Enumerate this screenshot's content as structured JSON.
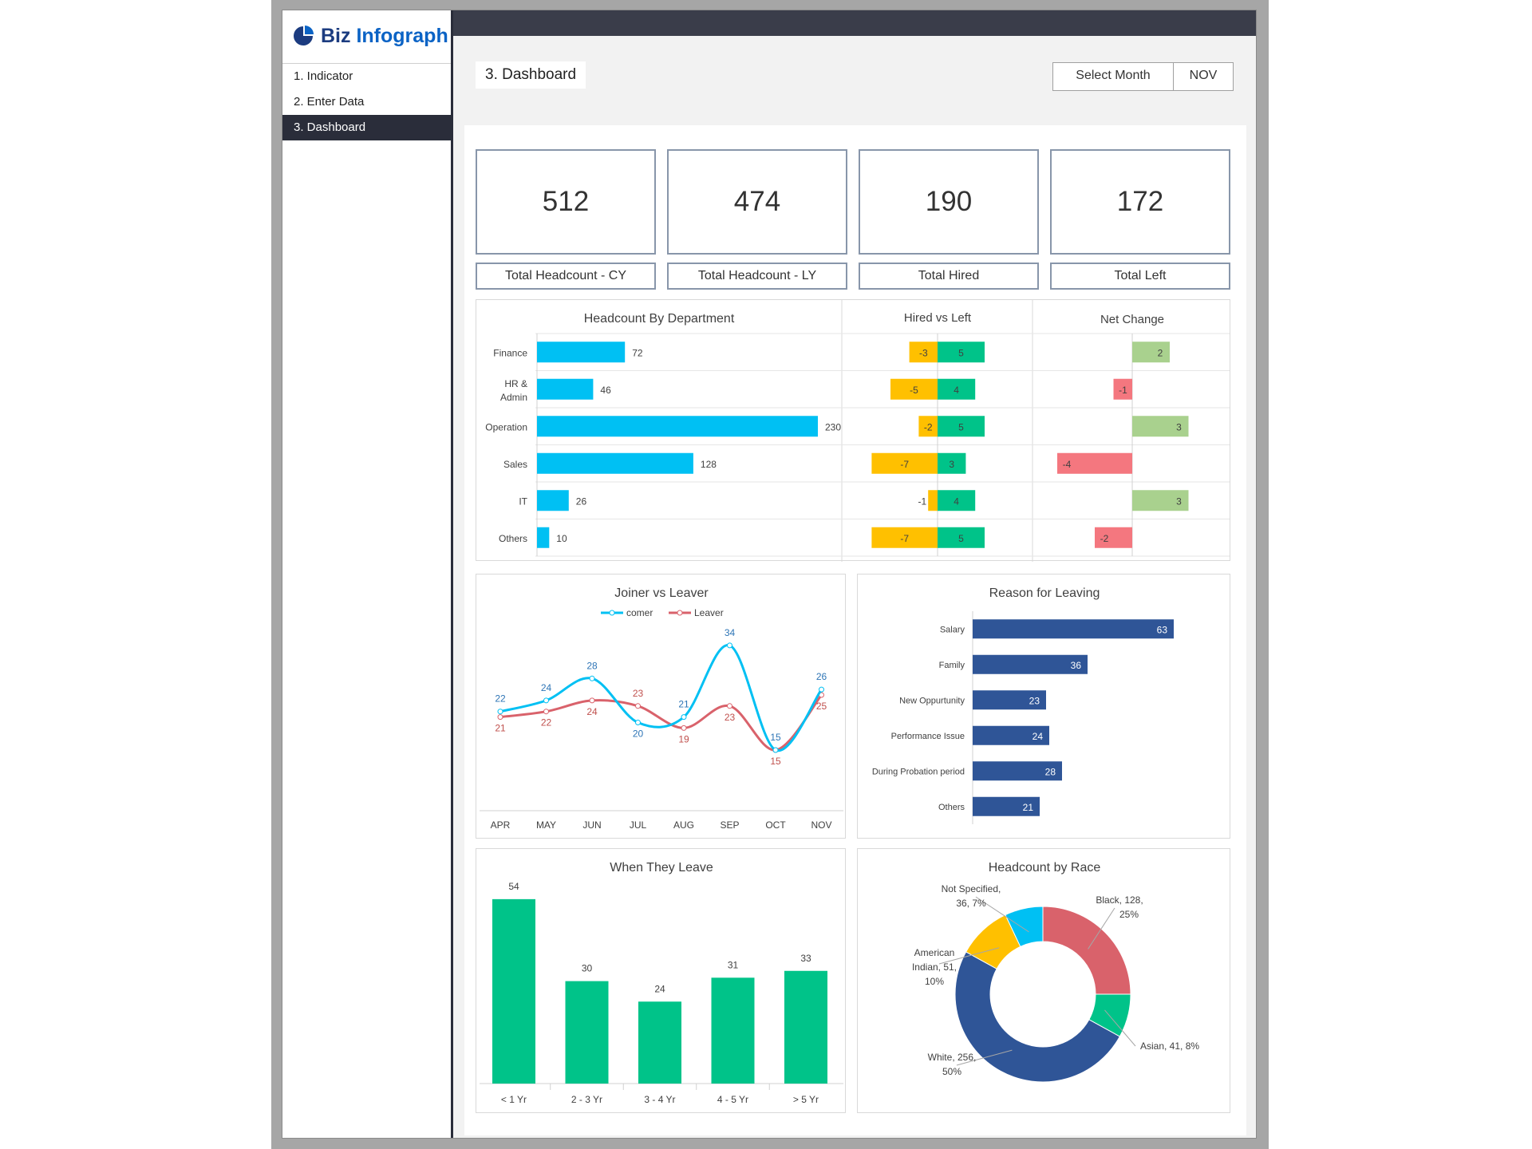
{
  "brand": {
    "name_a": "Biz",
    "name_b": "Infograph"
  },
  "nav": {
    "items": [
      "1. Indicator",
      "2. Enter Data",
      "3. Dashboard"
    ],
    "active": 2
  },
  "header": {
    "title": "3. Dashboard",
    "select_label": "Select Month",
    "selected_month": "NOV"
  },
  "kpis": [
    {
      "value": "512",
      "label": "Total Headcount - CY"
    },
    {
      "value": "474",
      "label": "Total Headcount - LY"
    },
    {
      "value": "190",
      "label": "Total Hired"
    },
    {
      "value": "172",
      "label": "Total Left"
    }
  ],
  "colors": {
    "cyan": "#00c0f3",
    "amber": "#ffc000",
    "green": "#00c389",
    "lightgreen": "#a9d18e",
    "red": "#f4777f",
    "navy": "#2f5597",
    "leaver": "#d9626b"
  },
  "chart_data": [
    {
      "type": "bar",
      "title": "Headcount By Department",
      "categories": [
        "Finance",
        "HR & Admin",
        "Operation",
        "Sales",
        "IT",
        "Others"
      ],
      "values": [
        72,
        46,
        230,
        128,
        26,
        10
      ]
    },
    {
      "type": "bar",
      "title": "Hired vs Left",
      "categories": [
        "Finance",
        "HR & Admin",
        "Operation",
        "Sales",
        "IT",
        "Others"
      ],
      "series": [
        {
          "values": [
            -3,
            -5,
            -2,
            -7,
            -1,
            -7
          ]
        },
        {
          "values": [
            5,
            4,
            5,
            3,
            4,
            5
          ]
        }
      ]
    },
    {
      "type": "bar",
      "title": "Net Change",
      "categories": [
        "Finance",
        "HR & Admin",
        "Operation",
        "Sales",
        "IT",
        "Others"
      ],
      "values": [
        2,
        -1,
        3,
        -4,
        3,
        -2
      ]
    },
    {
      "type": "line",
      "title": "Joiner vs Leaver",
      "categories": [
        "APR",
        "MAY",
        "JUN",
        "JUL",
        "AUG",
        "SEP",
        "OCT",
        "NOV"
      ],
      "series": [
        {
          "name": "comer",
          "values": [
            22,
            24,
            28,
            20,
            21,
            34,
            15,
            26
          ]
        },
        {
          "name": "Leaver",
          "values": [
            21,
            22,
            24,
            23,
            19,
            23,
            15,
            25
          ]
        }
      ],
      "legend": "top"
    },
    {
      "type": "bar",
      "title": "Reason for Leaving",
      "categories": [
        "Salary",
        "Family",
        "New Oppurtunity",
        "Performance Issue",
        "During Probation period",
        "Others"
      ],
      "values": [
        63,
        36,
        23,
        24,
        28,
        21
      ]
    },
    {
      "type": "bar",
      "title": "When They Leave",
      "categories": [
        "< 1 Yr",
        "2 - 3 Yr",
        "3 - 4 Yr",
        "4 - 5 Yr",
        "> 5 Yr"
      ],
      "values": [
        54,
        30,
        24,
        31,
        33
      ]
    },
    {
      "type": "pie",
      "title": "Headcount by Race",
      "categories": [
        "Black",
        "Asian",
        "White",
        "American Indian",
        "Not Specified"
      ],
      "values": [
        128,
        41,
        256,
        51,
        36
      ],
      "percents": [
        "25%",
        "8%",
        "50%",
        "10%",
        "7%"
      ],
      "labels": [
        [
          "Black, 128,",
          "25%"
        ],
        [
          "Asian, 41, 8%"
        ],
        [
          "White, 256,",
          "50%"
        ],
        [
          "American",
          "Indian, 51,",
          "10%"
        ],
        [
          "Not Specified,",
          "36, 7%"
        ]
      ]
    }
  ]
}
